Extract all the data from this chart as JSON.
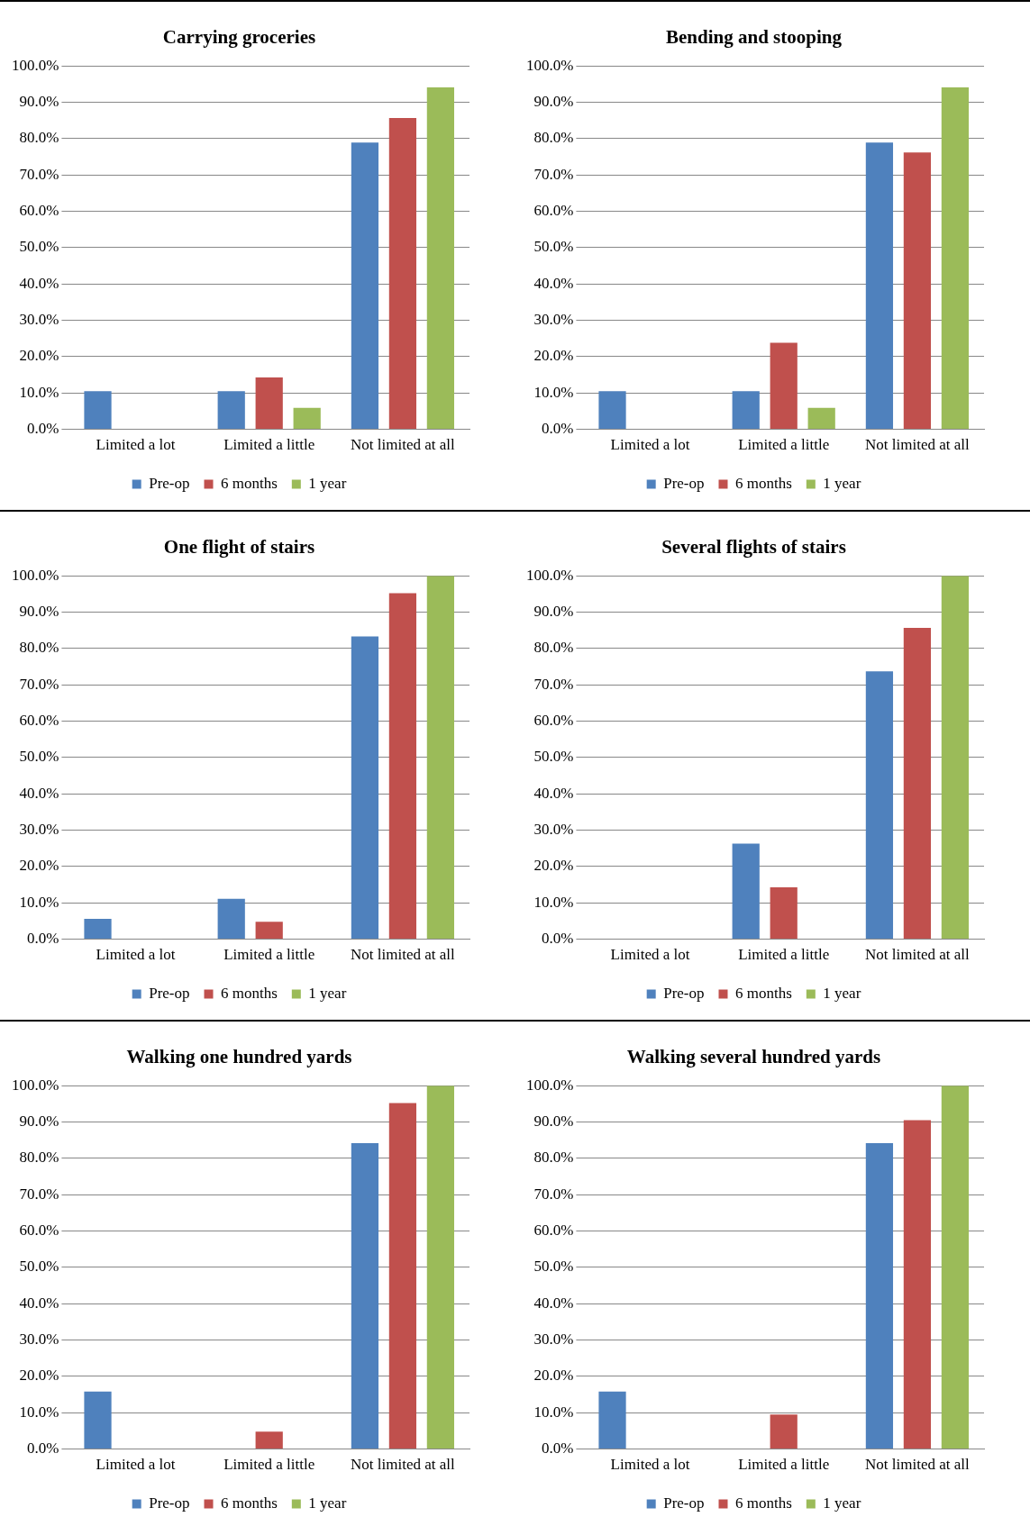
{
  "chart_data": [
    {
      "type": "bar",
      "title": "Carrying groceries",
      "categories": [
        "Limited a lot",
        "Limited a little",
        "Not limited at all"
      ],
      "series": [
        {
          "name": "Pre-op",
          "color": "#4f81bd",
          "values": [
            10.5,
            10.5,
            78.9
          ]
        },
        {
          "name": "6 months",
          "color": "#c0504d",
          "values": [
            0,
            14.3,
            85.7
          ]
        },
        {
          "name": "1 year",
          "color": "#9bbb59",
          "values": [
            0,
            5.9,
            94.1
          ]
        }
      ],
      "ylim": [
        0,
        100
      ],
      "yticks": [
        {
          "value": 0,
          "label": "0.0%"
        },
        {
          "value": 10,
          "label": "10.0%"
        },
        {
          "value": 20,
          "label": "20.0%"
        },
        {
          "value": 30,
          "label": "30.0%"
        },
        {
          "value": 40,
          "label": "40.0%"
        },
        {
          "value": 50,
          "label": "50.0%"
        },
        {
          "value": 60,
          "label": "60.0%"
        },
        {
          "value": 70,
          "label": "70.0%"
        },
        {
          "value": 80,
          "label": "80.0%"
        },
        {
          "value": 90,
          "label": "90.0%"
        },
        {
          "value": 100,
          "label": "100.0%"
        }
      ],
      "grid": "y",
      "legend": "bottom"
    },
    {
      "type": "bar",
      "title": "Bending and stooping",
      "categories": [
        "Limited a lot",
        "Limited a little",
        "Not limited at all"
      ],
      "series": [
        {
          "name": "Pre-op",
          "color": "#4f81bd",
          "values": [
            10.5,
            10.5,
            78.9
          ]
        },
        {
          "name": "6 months",
          "color": "#c0504d",
          "values": [
            0,
            23.8,
            76.2
          ]
        },
        {
          "name": "1 year",
          "color": "#9bbb59",
          "values": [
            0,
            5.9,
            94.1
          ]
        }
      ],
      "ylim": [
        0,
        100
      ],
      "yticks": [
        {
          "value": 0,
          "label": "0.0%"
        },
        {
          "value": 10,
          "label": "10.0%"
        },
        {
          "value": 20,
          "label": "20.0%"
        },
        {
          "value": 30,
          "label": "30.0%"
        },
        {
          "value": 40,
          "label": "40.0%"
        },
        {
          "value": 50,
          "label": "50.0%"
        },
        {
          "value": 60,
          "label": "60.0%"
        },
        {
          "value": 70,
          "label": "70.0%"
        },
        {
          "value": 80,
          "label": "80.0%"
        },
        {
          "value": 90,
          "label": "90.0%"
        },
        {
          "value": 100,
          "label": "100.0%"
        }
      ],
      "grid": "y",
      "legend": "bottom"
    },
    {
      "type": "bar",
      "title": "One flight of stairs",
      "categories": [
        "Limited a lot",
        "Limited a little",
        "Not limited at all"
      ],
      "series": [
        {
          "name": "Pre-op",
          "color": "#4f81bd",
          "values": [
            5.6,
            11.1,
            83.3
          ]
        },
        {
          "name": "6 months",
          "color": "#c0504d",
          "values": [
            0,
            4.8,
            95.2
          ]
        },
        {
          "name": "1 year",
          "color": "#9bbb59",
          "values": [
            0,
            0,
            100
          ]
        }
      ],
      "ylim": [
        0,
        100
      ],
      "yticks": [
        {
          "value": 0,
          "label": "0.0%"
        },
        {
          "value": 10,
          "label": "10.0%"
        },
        {
          "value": 20,
          "label": "20.0%"
        },
        {
          "value": 30,
          "label": "30.0%"
        },
        {
          "value": 40,
          "label": "40.0%"
        },
        {
          "value": 50,
          "label": "50.0%"
        },
        {
          "value": 60,
          "label": "60.0%"
        },
        {
          "value": 70,
          "label": "70.0%"
        },
        {
          "value": 80,
          "label": "80.0%"
        },
        {
          "value": 90,
          "label": "90.0%"
        },
        {
          "value": 100,
          "label": "100.0%"
        }
      ],
      "grid": "y",
      "legend": "bottom"
    },
    {
      "type": "bar",
      "title": "Several flights of stairs",
      "categories": [
        "Limited a lot",
        "Limited a little",
        "Not limited at all"
      ],
      "series": [
        {
          "name": "Pre-op",
          "color": "#4f81bd",
          "values": [
            0,
            26.3,
            73.7
          ]
        },
        {
          "name": "6 months",
          "color": "#c0504d",
          "values": [
            0,
            14.3,
            85.7
          ]
        },
        {
          "name": "1 year",
          "color": "#9bbb59",
          "values": [
            0,
            0,
            100
          ]
        }
      ],
      "ylim": [
        0,
        100
      ],
      "yticks": [
        {
          "value": 0,
          "label": "0.0%"
        },
        {
          "value": 10,
          "label": "10.0%"
        },
        {
          "value": 20,
          "label": "20.0%"
        },
        {
          "value": 30,
          "label": "30.0%"
        },
        {
          "value": 40,
          "label": "40.0%"
        },
        {
          "value": 50,
          "label": "50.0%"
        },
        {
          "value": 60,
          "label": "60.0%"
        },
        {
          "value": 70,
          "label": "70.0%"
        },
        {
          "value": 80,
          "label": "80.0%"
        },
        {
          "value": 90,
          "label": "90.0%"
        },
        {
          "value": 100,
          "label": "100.0%"
        }
      ],
      "grid": "y",
      "legend": "bottom"
    },
    {
      "type": "bar",
      "title": "Walking one hundred yards",
      "categories": [
        "Limited a lot",
        "Limited a little",
        "Not limited at all"
      ],
      "series": [
        {
          "name": "Pre-op",
          "color": "#4f81bd",
          "values": [
            15.8,
            0,
            84.2
          ]
        },
        {
          "name": "6 months",
          "color": "#c0504d",
          "values": [
            0,
            4.8,
            95.2
          ]
        },
        {
          "name": "1 year",
          "color": "#9bbb59",
          "values": [
            0,
            0,
            100
          ]
        }
      ],
      "ylim": [
        0,
        100
      ],
      "yticks": [
        {
          "value": 0,
          "label": "0.0%"
        },
        {
          "value": 10,
          "label": "10.0%"
        },
        {
          "value": 20,
          "label": "20.0%"
        },
        {
          "value": 30,
          "label": "30.0%"
        },
        {
          "value": 40,
          "label": "40.0%"
        },
        {
          "value": 50,
          "label": "50.0%"
        },
        {
          "value": 60,
          "label": "60.0%"
        },
        {
          "value": 70,
          "label": "70.0%"
        },
        {
          "value": 80,
          "label": "80.0%"
        },
        {
          "value": 90,
          "label": "90.0%"
        },
        {
          "value": 100,
          "label": "100.0%"
        }
      ],
      "grid": "y",
      "legend": "bottom"
    },
    {
      "type": "bar",
      "title": "Walking several hundred yards",
      "categories": [
        "Limited a lot",
        "Limited a little",
        "Not limited at all"
      ],
      "series": [
        {
          "name": "Pre-op",
          "color": "#4f81bd",
          "values": [
            15.8,
            0,
            84.2
          ]
        },
        {
          "name": "6 months",
          "color": "#c0504d",
          "values": [
            0,
            9.5,
            90.5
          ]
        },
        {
          "name": "1 year",
          "color": "#9bbb59",
          "values": [
            0,
            0,
            100
          ]
        }
      ],
      "ylim": [
        0,
        100
      ],
      "yticks": [
        {
          "value": 0,
          "label": "0.0%"
        },
        {
          "value": 10,
          "label": "10.0%"
        },
        {
          "value": 20,
          "label": "20.0%"
        },
        {
          "value": 30,
          "label": "30.0%"
        },
        {
          "value": 40,
          "label": "40.0%"
        },
        {
          "value": 50,
          "label": "50.0%"
        },
        {
          "value": 60,
          "label": "60.0%"
        },
        {
          "value": 70,
          "label": "70.0%"
        },
        {
          "value": 80,
          "label": "80.0%"
        },
        {
          "value": 90,
          "label": "90.0%"
        },
        {
          "value": 100,
          "label": "100.0%"
        }
      ],
      "grid": "y",
      "legend": "bottom"
    }
  ]
}
